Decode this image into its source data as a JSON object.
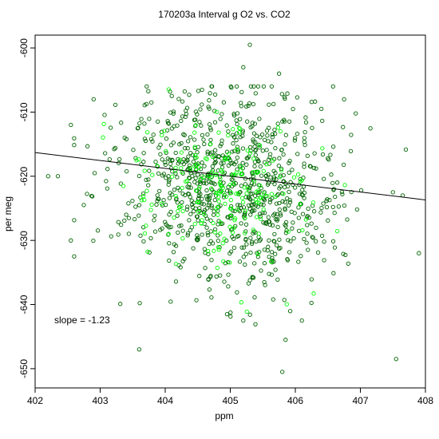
{
  "chart_data": {
    "type": "scatter",
    "title": "170203a   Interval g O2 vs. CO2",
    "xlabel": "ppm",
    "ylabel": "per meg",
    "xlim": [
      402,
      408
    ],
    "ylim": [
      -653,
      -598
    ],
    "xticks": [
      "402",
      "403",
      "404",
      "405",
      "406",
      "407",
      "408"
    ],
    "yticks": [
      "-600",
      "-610",
      "-620",
      "-630",
      "-640",
      "-650"
    ],
    "grid": false,
    "annotation": "slope =  -1.23",
    "fit_line": {
      "slope": -1.23,
      "intercept": -620.0,
      "x_center": 405.0,
      "color": "#000000"
    },
    "series": [
      {
        "color": "#006400",
        "marker": "open-circle",
        "n_points": 900,
        "x_mean": 405.0,
        "x_sd": 0.9,
        "y_mean": -621.5,
        "y_sd": 7.5,
        "corr": -0.15
      },
      {
        "color": "#00ff00",
        "marker": "open-circle",
        "n_points": 200,
        "x_mean": 404.9,
        "x_sd": 0.65,
        "y_mean": -622.0,
        "y_sd": 6.0,
        "corr": -0.15
      }
    ],
    "outliers": [
      {
        "x": 405.3,
        "y": -599.5
      },
      {
        "x": 405.2,
        "y": -603
      },
      {
        "x": 404.1,
        "y": -607.5
      },
      {
        "x": 402.9,
        "y": -608
      },
      {
        "x": 402.55,
        "y": -612
      },
      {
        "x": 402.2,
        "y": -620
      },
      {
        "x": 402.35,
        "y": -620
      },
      {
        "x": 402.55,
        "y": -630
      },
      {
        "x": 402.6,
        "y": -632.5
      },
      {
        "x": 403.6,
        "y": -647
      },
      {
        "x": 404.95,
        "y": -641.5
      },
      {
        "x": 405.2,
        "y": -642.5
      },
      {
        "x": 405.85,
        "y": -645.5
      },
      {
        "x": 405.8,
        "y": -650.5
      },
      {
        "x": 406.1,
        "y": -642.5
      },
      {
        "x": 407.55,
        "y": -648.5
      },
      {
        "x": 407.9,
        "y": -632
      },
      {
        "x": 407.65,
        "y": -623
      },
      {
        "x": 407.5,
        "y": -622.5
      },
      {
        "x": 406.4,
        "y": -609.5
      },
      {
        "x": 406.75,
        "y": -608
      },
      {
        "x": 405.75,
        "y": -604
      }
    ]
  }
}
